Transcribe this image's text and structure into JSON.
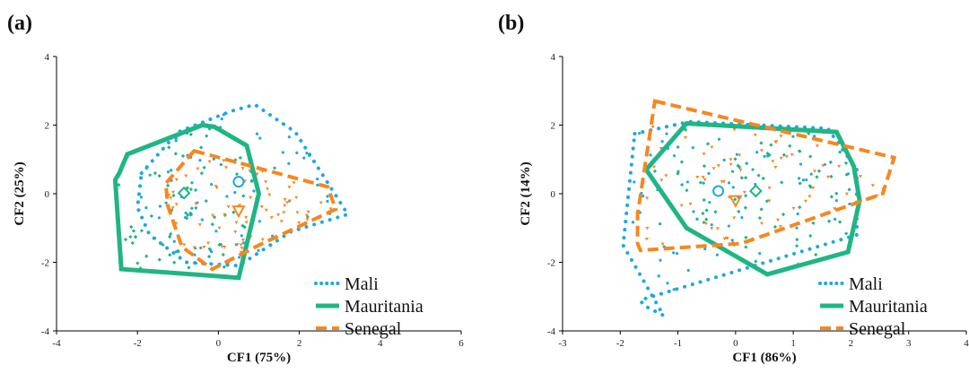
{
  "chart_data": [
    {
      "type": "scatter",
      "panel_label": "(a)",
      "xlabel": "CF1 (75%)",
      "ylabel": "CF2 (25%)",
      "xlim": [
        -4,
        6
      ],
      "ylim": [
        -4,
        4
      ],
      "xticks": [
        "-4",
        "-2",
        "0",
        "2",
        "4",
        "6"
      ],
      "yticks": [
        "-4",
        "-2",
        "0",
        "2",
        "4"
      ],
      "legend_position": "bottom-right",
      "series": [
        {
          "name": "Mali",
          "color": "#1ea7e4",
          "line_style": "dotted",
          "centroid_marker": "circle",
          "centroid": [
            0.5,
            0.35
          ],
          "hull": [
            [
              -1.9,
              0.6
            ],
            [
              -1.0,
              1.8
            ],
            [
              0.3,
              2.4
            ],
            [
              0.9,
              2.6
            ],
            [
              1.9,
              1.8
            ],
            [
              3.2,
              -0.6
            ],
            [
              1.8,
              -1.1
            ],
            [
              0.5,
              -2.1
            ],
            [
              -0.8,
              -2.0
            ],
            [
              -1.7,
              -1.2
            ],
            [
              -2.0,
              -0.4
            ]
          ]
        },
        {
          "name": "Mauritania",
          "color": "#1fb585",
          "line_style": "solid",
          "centroid_marker": "diamond",
          "centroid": [
            -0.85,
            0.02
          ],
          "hull": [
            [
              -2.25,
              1.15
            ],
            [
              -0.4,
              2.0
            ],
            [
              -0.1,
              1.95
            ],
            [
              0.7,
              1.4
            ],
            [
              1.0,
              0.0
            ],
            [
              0.5,
              -2.45
            ],
            [
              -2.4,
              -2.2
            ],
            [
              -2.55,
              0.4
            ],
            [
              -2.45,
              0.6
            ]
          ]
        },
        {
          "name": "Senegal",
          "color": "#f7871d",
          "line_style": "dashed",
          "centroid_marker": "triangle-down",
          "centroid": [
            0.5,
            -0.5
          ],
          "hull": [
            [
              -0.6,
              1.25
            ],
            [
              2.7,
              0.2
            ],
            [
              2.9,
              -0.45
            ],
            [
              1.0,
              -1.5
            ],
            [
              -0.15,
              -2.2
            ],
            [
              -0.9,
              -1.55
            ],
            [
              -1.25,
              -0.35
            ],
            [
              -1.3,
              0.3
            ]
          ]
        }
      ]
    },
    {
      "type": "scatter",
      "panel_label": "(b)",
      "xlabel": "CF1 (86%)",
      "ylabel": "CF2 (14%)",
      "xlim": [
        -3,
        4
      ],
      "ylim": [
        -4,
        4
      ],
      "xticks": [
        "-3",
        "-2",
        "-1",
        "0",
        "1",
        "2",
        "3",
        "4"
      ],
      "yticks": [
        "-4",
        "-2",
        "0",
        "2",
        "4"
      ],
      "legend_position": "bottom-right",
      "series": [
        {
          "name": "Mali",
          "color": "#1ea7e4",
          "line_style": "dotted",
          "centroid_marker": "circle",
          "centroid": [
            -0.3,
            0.08
          ],
          "hull": [
            [
              -1.75,
              1.75
            ],
            [
              -0.8,
              2.1
            ],
            [
              1.6,
              1.9
            ],
            [
              2.1,
              0.7
            ],
            [
              2.1,
              -1.2
            ],
            [
              -1.65,
              -3.1
            ],
            [
              -1.6,
              -3.25
            ],
            [
              -1.25,
              -3.55
            ],
            [
              -1.95,
              -1.5
            ]
          ]
        },
        {
          "name": "Mauritania",
          "color": "#1fb585",
          "line_style": "solid",
          "centroid_marker": "diamond",
          "centroid": [
            0.35,
            0.08
          ],
          "hull": [
            [
              -0.85,
              2.05
            ],
            [
              1.75,
              1.8
            ],
            [
              2.05,
              0.8
            ],
            [
              2.15,
              -0.2
            ],
            [
              1.95,
              -1.7
            ],
            [
              0.55,
              -2.35
            ],
            [
              -0.85,
              -1.0
            ],
            [
              -1.55,
              0.7
            ]
          ]
        },
        {
          "name": "Senegal",
          "color": "#f7871d",
          "line_style": "dashed",
          "centroid_marker": "triangle-down",
          "centroid": [
            0.0,
            -0.2
          ],
          "hull": [
            [
              -1.4,
              2.7
            ],
            [
              2.75,
              1.05
            ],
            [
              2.55,
              0.0
            ],
            [
              0.1,
              -1.45
            ],
            [
              -1.65,
              -1.65
            ],
            [
              -1.7,
              -1.45
            ],
            [
              -1.7,
              -0.6
            ]
          ]
        }
      ]
    }
  ]
}
